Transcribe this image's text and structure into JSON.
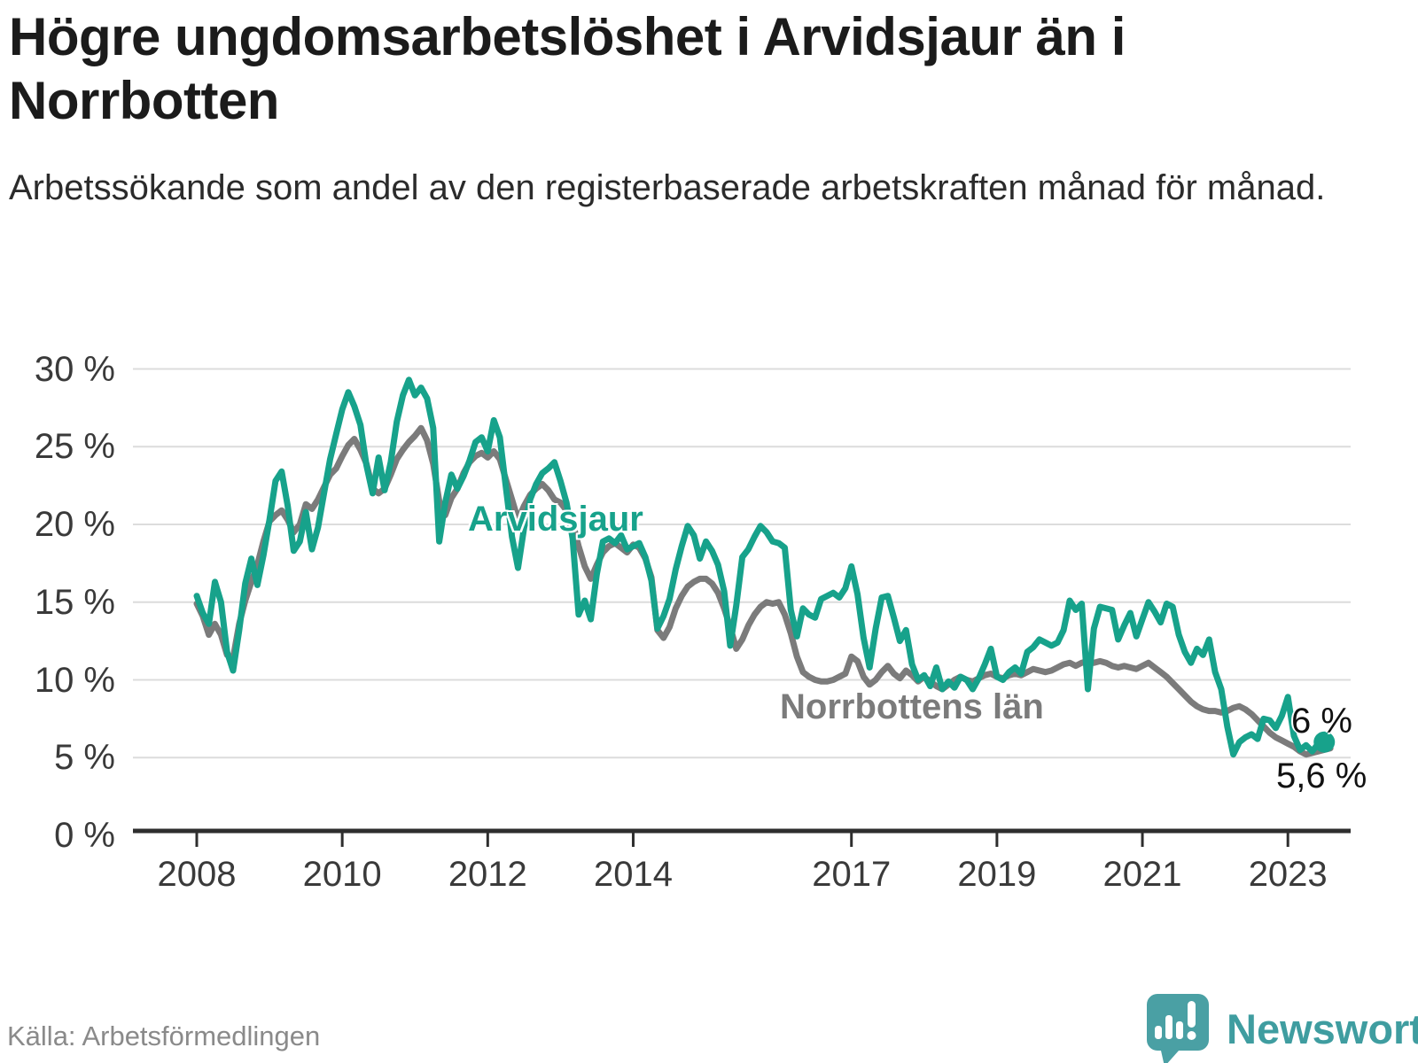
{
  "header": {
    "title": "Högre ungdomsarbetslöshet i Arvidsjaur än i Norrbotten",
    "subtitle": "Arbetssökande som andel av den registerbaserade arbetskraften månad för månad."
  },
  "footer": {
    "source": "Källa: Arbetsförmedlingen",
    "brand_name": "Newsworthy"
  },
  "chart_data": {
    "type": "line",
    "title": "Högre ungdomsarbetslöshet i Arvidsjaur än i Norrbotten",
    "subtitle": "Arbetssökande som andel av den registerbaserade arbetskraften månad för månad.",
    "unit": "%",
    "frequency": "monthly",
    "start": "2008-01",
    "ylim": [
      0,
      30
    ],
    "grid": "horizontal",
    "y_ticks": [
      0,
      5,
      10,
      15,
      20,
      25,
      30
    ],
    "y_tick_labels": [
      "0 %",
      "5 %",
      "10 %",
      "15 %",
      "20 %",
      "25 %",
      "30 %"
    ],
    "x_tick_years": [
      "2008",
      "2010",
      "2012",
      "2014",
      "2017",
      "2019",
      "2021",
      "2023"
    ],
    "colors": {
      "arvidsjaur": "#17a28b",
      "norrbotten": "#7b7b7b",
      "grid": "#dcdcdc",
      "axis": "#2e2e2e"
    },
    "series": [
      {
        "name": "Arvidsjaur",
        "color": "#17a28b",
        "end_label": "6 %",
        "end_dot": true,
        "values": [
          15.4,
          14.3,
          13.6,
          16.3,
          15.0,
          11.8,
          10.6,
          13.2,
          16.2,
          17.8,
          16.1,
          18.0,
          20.3,
          22.8,
          23.4,
          21.2,
          18.3,
          18.9,
          20.8,
          18.4,
          19.8,
          22.0,
          24.2,
          25.8,
          27.4,
          28.5,
          27.6,
          26.4,
          23.8,
          22.0,
          24.3,
          22.2,
          24.0,
          26.6,
          28.3,
          29.3,
          28.3,
          28.8,
          28.1,
          26.2,
          18.9,
          21.4,
          23.2,
          22.3,
          23.1,
          24.1,
          25.3,
          25.6,
          24.7,
          26.7,
          25.6,
          22.4,
          19.2,
          17.2,
          19.8,
          21.6,
          22.6,
          23.3,
          23.6,
          24.0,
          22.8,
          21.4,
          19.1,
          14.2,
          15.1,
          13.9,
          16.8,
          18.9,
          19.1,
          18.8,
          19.3,
          18.4,
          18.6,
          18.8,
          17.9,
          16.4,
          13.3,
          14.1,
          15.2,
          17.1,
          18.6,
          19.9,
          19.3,
          17.8,
          18.9,
          18.3,
          17.4,
          15.7,
          12.2,
          14.8,
          17.9,
          18.4,
          19.2,
          19.9,
          19.5,
          18.9,
          18.8,
          18.5,
          14.5,
          12.8,
          14.6,
          14.2,
          14.0,
          15.2,
          15.4,
          15.6,
          15.3,
          15.9,
          17.3,
          15.5,
          12.7,
          10.8,
          13.3,
          15.3,
          15.4,
          14.0,
          12.5,
          13.2,
          11.0,
          10.0,
          10.3,
          9.6,
          10.8,
          9.4,
          9.9,
          9.5,
          10.2,
          10.0,
          9.4,
          10.1,
          11.0,
          12.0,
          10.2,
          10.0,
          10.5,
          10.8,
          10.4,
          11.8,
          12.1,
          12.6,
          12.4,
          12.2,
          12.4,
          13.2,
          15.1,
          14.5,
          14.9,
          9.4,
          13.3,
          14.7,
          14.6,
          14.5,
          12.6,
          13.5,
          14.3,
          12.8,
          13.9,
          15.0,
          14.4,
          13.7,
          14.9,
          14.7,
          12.9,
          11.8,
          11.1,
          12.0,
          11.6,
          12.6,
          10.5,
          9.4,
          7.0,
          5.2,
          6.0,
          6.3,
          6.5,
          6.2,
          7.5,
          7.4,
          6.9,
          7.7,
          8.9,
          6.4,
          5.5,
          5.8,
          5.4,
          5.9,
          6.0
        ]
      },
      {
        "name": "Norrbottens län",
        "color": "#7b7b7b",
        "end_label": "5,6 %",
        "end_dot": false,
        "values": [
          14.9,
          14.1,
          12.9,
          13.6,
          12.9,
          11.6,
          11.4,
          13.6,
          15.1,
          16.3,
          17.4,
          18.9,
          20.2,
          20.6,
          20.9,
          20.3,
          19.5,
          20.0,
          21.3,
          21.0,
          21.6,
          22.4,
          23.2,
          23.6,
          24.4,
          25.1,
          25.5,
          24.8,
          23.9,
          22.3,
          22.0,
          22.3,
          23.2,
          24.2,
          24.8,
          25.3,
          25.7,
          26.2,
          25.4,
          23.9,
          21.5,
          20.6,
          21.7,
          22.3,
          23.3,
          24.0,
          24.4,
          24.6,
          24.3,
          24.7,
          24.2,
          22.9,
          21.6,
          20.3,
          21.2,
          21.9,
          22.3,
          22.6,
          22.2,
          21.6,
          21.4,
          20.9,
          20.1,
          18.6,
          17.3,
          16.5,
          17.4,
          18.2,
          18.6,
          18.8,
          18.5,
          18.2,
          18.7,
          18.5,
          17.8,
          16.6,
          13.2,
          12.7,
          13.4,
          14.6,
          15.4,
          16.0,
          16.3,
          16.5,
          16.5,
          16.2,
          15.6,
          14.6,
          13.4,
          12.0,
          12.6,
          13.5,
          14.2,
          14.7,
          15.0,
          14.9,
          15.0,
          14.2,
          13.0,
          11.5,
          10.5,
          10.2,
          10.0,
          9.9,
          9.9,
          10.0,
          10.2,
          10.4,
          11.5,
          11.2,
          10.2,
          9.7,
          10.0,
          10.5,
          10.9,
          10.4,
          10.1,
          10.6,
          10.3,
          9.9,
          10.2,
          9.9,
          9.6,
          9.4,
          9.7,
          10.0,
          10.2,
          10.0,
          9.9,
          10.1,
          10.3,
          10.4,
          10.2,
          10.1,
          10.3,
          10.4,
          10.3,
          10.5,
          10.7,
          10.6,
          10.5,
          10.6,
          10.8,
          11.0,
          11.1,
          10.9,
          11.1,
          11.2,
          11.1,
          11.2,
          11.1,
          10.9,
          10.8,
          10.9,
          10.8,
          10.7,
          10.9,
          11.1,
          10.8,
          10.5,
          10.2,
          9.8,
          9.4,
          9.0,
          8.6,
          8.3,
          8.1,
          8.0,
          8.0,
          7.9,
          8.0,
          8.2,
          8.3,
          8.1,
          7.8,
          7.4,
          7.0,
          6.6,
          6.3,
          6.1,
          5.9,
          5.7,
          5.4,
          5.2,
          5.3,
          5.4,
          5.5,
          5.6
        ]
      }
    ],
    "legend_position": "inline-labels",
    "annotations": [
      {
        "text": "Arvidsjaur",
        "color": "#17a28b"
      },
      {
        "text": "Norrbottens län",
        "color": "#7b7b7b"
      },
      {
        "text": "6 %",
        "series": "Arvidsjaur"
      },
      {
        "text": "5,6 %",
        "series": "Norrbottens län"
      }
    ]
  }
}
